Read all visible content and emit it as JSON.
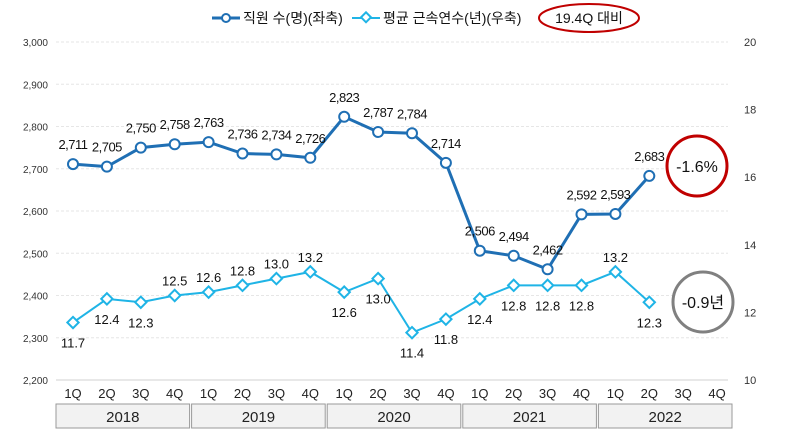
{
  "chart_data": {
    "type": "line",
    "legend": {
      "series1": "직원 수(명)(좌축)",
      "series2": "평균 근속연수(년)(우축)",
      "note": "19.4Q 대비"
    },
    "quarters": [
      "1Q",
      "2Q",
      "3Q",
      "4Q",
      "1Q",
      "2Q",
      "3Q",
      "4Q",
      "1Q",
      "2Q",
      "3Q",
      "4Q",
      "1Q",
      "2Q",
      "3Q",
      "4Q",
      "1Q",
      "2Q",
      "3Q",
      "4Q"
    ],
    "years": [
      "2018",
      "2019",
      "2020",
      "2021",
      "2022"
    ],
    "left_axis": {
      "min": 2200,
      "max": 3000,
      "ticks": [
        "2,200",
        "2,300",
        "2,400",
        "2,500",
        "2,600",
        "2,700",
        "2,800",
        "2,900",
        "3,000"
      ]
    },
    "right_axis": {
      "min": 10,
      "max": 20,
      "ticks": [
        "10",
        "12",
        "14",
        "16",
        "18",
        "20"
      ]
    },
    "series": [
      {
        "name": "직원 수(명)(좌축)",
        "axis": "left",
        "color": "#1f6fb4",
        "values": [
          2711,
          2705,
          2750,
          2758,
          2763,
          2736,
          2734,
          2726,
          2823,
          2787,
          2784,
          2714,
          2506,
          2494,
          2462,
          2592,
          2593,
          2683
        ],
        "labels": [
          "2,711",
          "2,705",
          "2,750",
          "2,758",
          "2,763",
          "2,736",
          "2,734",
          "2,726",
          "2,823",
          "2,787",
          "2,784",
          "2,714",
          "2,506",
          "2,494",
          "2,462",
          "2,592",
          "2,593",
          "2,683"
        ]
      },
      {
        "name": "평균 근속연수(년)(우축)",
        "axis": "right",
        "color": "#1fb4e6",
        "values": [
          11.7,
          12.4,
          12.3,
          12.5,
          12.6,
          12.8,
          13.0,
          13.2,
          12.6,
          13.0,
          11.4,
          11.8,
          12.4,
          12.8,
          12.8,
          12.8,
          13.2,
          12.3
        ],
        "labels": [
          "11.7",
          "12.4",
          "12.3",
          "12.5",
          "12.6",
          "12.8",
          "13.0",
          "13.2",
          "12.6",
          "13.0",
          "11.4",
          "11.8",
          "12.4",
          "12.8",
          "12.8",
          "12.8",
          "13.2",
          "12.3"
        ]
      }
    ],
    "annotations": [
      {
        "text": "-1.6%",
        "color": "#c00000"
      },
      {
        "text": "-0.9년",
        "color": "#808080"
      }
    ]
  }
}
